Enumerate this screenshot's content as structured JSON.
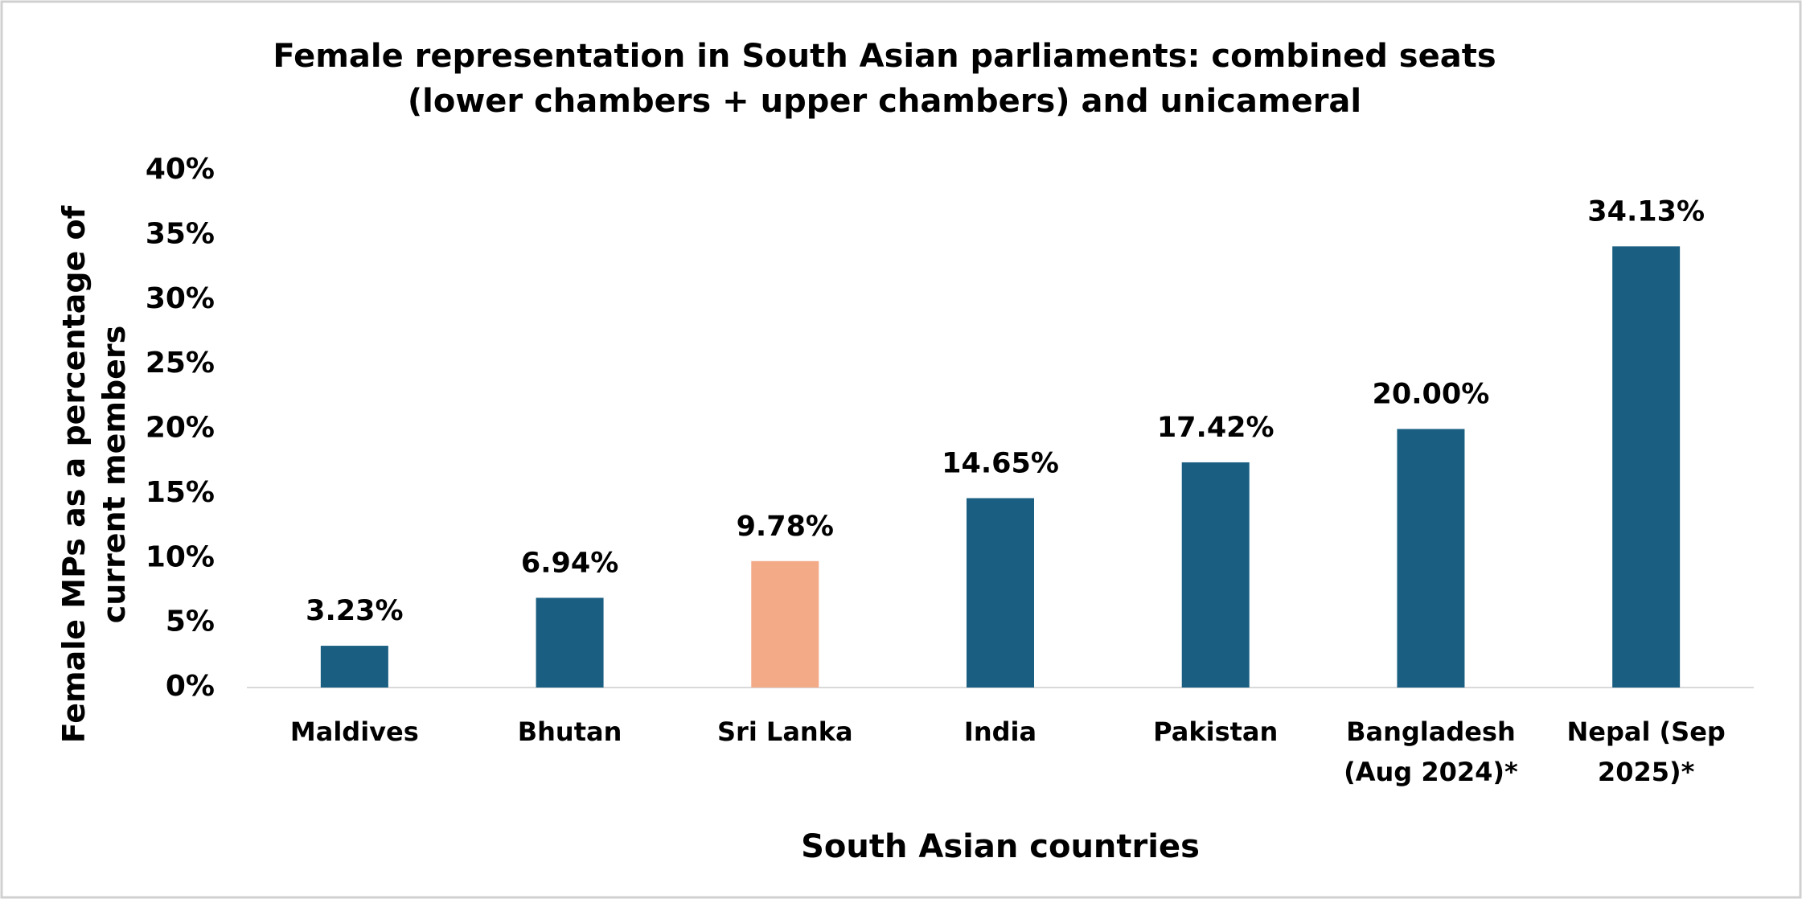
{
  "chart_data": {
    "type": "bar",
    "title": "Female representation in South Asian parliaments: combined seats (lower chambers + upper chambers) and unicameral",
    "x_label": "South Asian countries",
    "y_label": "Female MPs  as a percentage of current members",
    "categories": [
      "Maldives",
      "Bhutan",
      "Sri Lanka",
      "India",
      "Pakistan",
      "Bangladesh (Aug 2024)*",
      "Nepal (Sep 2025)*"
    ],
    "values": [
      3.23,
      6.94,
      9.78,
      14.65,
      17.42,
      20.0,
      34.13
    ],
    "value_labels": [
      "3.23%",
      "6.94%",
      "9.78%",
      "14.65%",
      "17.42%",
      "20.00%",
      "34.13%"
    ],
    "colors": [
      "#1a5f82",
      "#1a5f82",
      "#f2aa87",
      "#1a5f82",
      "#1a5f82",
      "#1a5f82",
      "#1a5f82"
    ],
    "ylim": [
      0,
      40
    ],
    "yticks": [
      {
        "value": 0,
        "label": "0%"
      },
      {
        "value": 5,
        "label": "5%"
      },
      {
        "value": 10,
        "label": "10%"
      },
      {
        "value": 15,
        "label": "15%"
      },
      {
        "value": 20,
        "label": "20%"
      },
      {
        "value": 25,
        "label": "25%"
      },
      {
        "value": 30,
        "label": "30%"
      },
      {
        "value": 35,
        "label": "35%"
      },
      {
        "value": 40,
        "label": "40%"
      }
    ],
    "grid": false
  }
}
